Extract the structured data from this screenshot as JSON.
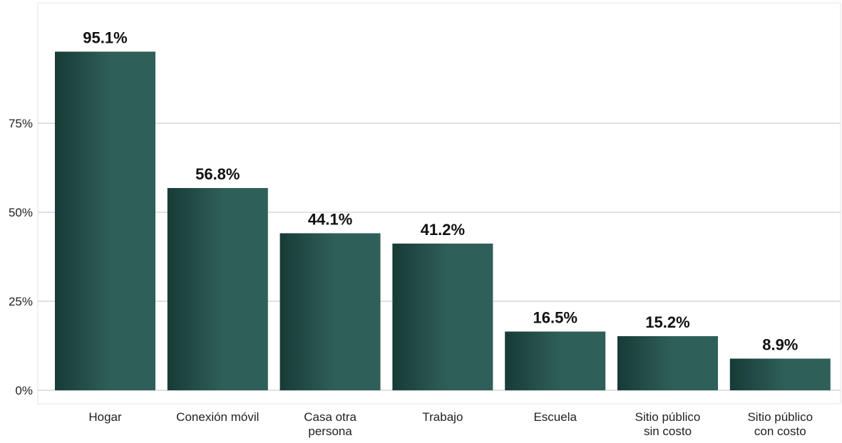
{
  "chart_data": {
    "type": "bar",
    "title": "",
    "xlabel": "",
    "ylabel": "",
    "categories": [
      "Hogar",
      "Conexión móvil",
      "Casa otra persona",
      "Trabajo",
      "Escuela",
      "Sitio público sin costo",
      "Sitio público con costo"
    ],
    "category_label_lines": [
      [
        "Hogar"
      ],
      [
        "Conexión móvil"
      ],
      [
        "Casa otra",
        "persona"
      ],
      [
        "Trabajo"
      ],
      [
        "Escuela"
      ],
      [
        "Sitio público",
        "sin costo"
      ],
      [
        "Sitio público",
        "con costo"
      ]
    ],
    "values": [
      95.1,
      56.8,
      44.1,
      41.2,
      16.5,
      15.2,
      8.9
    ],
    "value_labels": [
      "95.1%",
      "56.8%",
      "44.1%",
      "41.2%",
      "16.5%",
      "15.2%",
      "8.9%"
    ],
    "ylim": [
      0,
      107
    ],
    "yticks": [
      0,
      25,
      50,
      75
    ],
    "ytick_labels": [
      "0%",
      "25%",
      "50%",
      "75%"
    ],
    "grid": true,
    "legend": "none",
    "colors": {
      "bar_dark": "#173b36",
      "bar_light": "#2f5f59",
      "grid": "#cfcfcf",
      "axis_text": "#222222",
      "value_text": "#111111"
    }
  }
}
